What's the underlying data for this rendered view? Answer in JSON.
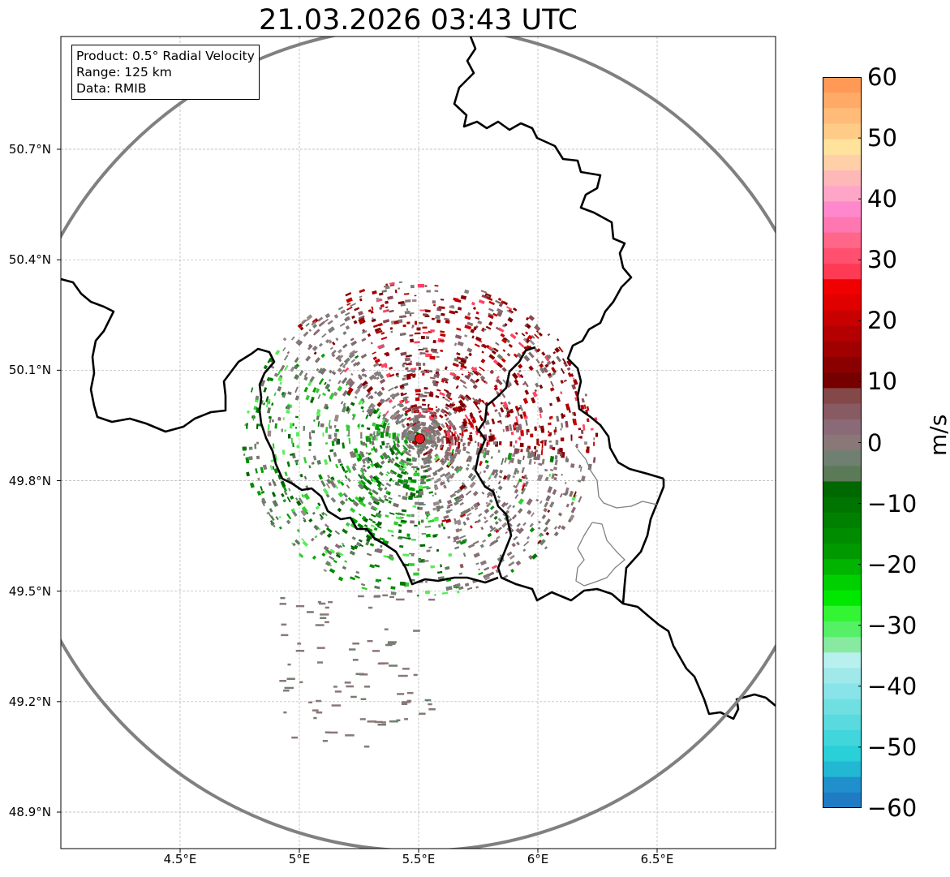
{
  "title": "21.03.2026 03:43 UTC",
  "info": {
    "product": "Product: 0.5° Radial Velocity",
    "range": "Range: 125 km",
    "data": "Data: RMIB"
  },
  "axes": {
    "lat_ticks": [
      {
        "label": "50.7°N",
        "value": 50.7
      },
      {
        "label": "50.4°N",
        "value": 50.4
      },
      {
        "label": "50.1°N",
        "value": 50.1
      },
      {
        "label": "49.8°N",
        "value": 49.8
      },
      {
        "label": "49.5°N",
        "value": 49.5
      },
      {
        "label": "49.2°N",
        "value": 49.2
      },
      {
        "label": "48.9°N",
        "value": 48.9
      }
    ],
    "lon_ticks": [
      {
        "label": "4.5°E",
        "value": 4.5
      },
      {
        "label": "5°E",
        "value": 5.0
      },
      {
        "label": "5.5°E",
        "value": 5.5
      },
      {
        "label": "6°E",
        "value": 6.0
      },
      {
        "label": "6.5°E",
        "value": 6.5
      }
    ],
    "lon_range": [
      4.0,
      7.0
    ],
    "lat_range": [
      48.8,
      51.0
    ]
  },
  "radar": {
    "site_lon": 5.505,
    "site_lat": 49.914,
    "range_km": 125,
    "site_color": "#e8141e"
  },
  "colorbar": {
    "unit": "m/s",
    "ticks": [
      "60",
      "50",
      "40",
      "30",
      "20",
      "10",
      "0",
      "−10",
      "−20",
      "−30",
      "−40",
      "−50",
      "−60"
    ],
    "vmin": -60,
    "vmax": 60,
    "colors_top_to_bottom": [
      "#ff9955",
      "#ffaa66",
      "#ffbb77",
      "#ffcc88",
      "#ffe39c",
      "#ffd0a8",
      "#ffb8b8",
      "#ffa6c8",
      "#ff88cc",
      "#ff77b0",
      "#ff6688",
      "#ff5070",
      "#ff3a55",
      "#f00000",
      "#e00000",
      "#c80000",
      "#b40000",
      "#a00000",
      "#8a0000",
      "#760000",
      "#844848",
      "#885a62",
      "#8a6a76",
      "#8a7878",
      "#6f8070",
      "#5a7a58",
      "#006800",
      "#007400",
      "#008000",
      "#008c00",
      "#009a00",
      "#00b400",
      "#00d000",
      "#00e800",
      "#33f533",
      "#55f066",
      "#88eaa0",
      "#b8f0f0",
      "#a0e8ea",
      "#88e4e8",
      "#70dfe2",
      "#58dadf",
      "#40d6dc",
      "#2ad0d8",
      "#22b8d4",
      "#2090cc",
      "#1f7cc4"
    ]
  }
}
